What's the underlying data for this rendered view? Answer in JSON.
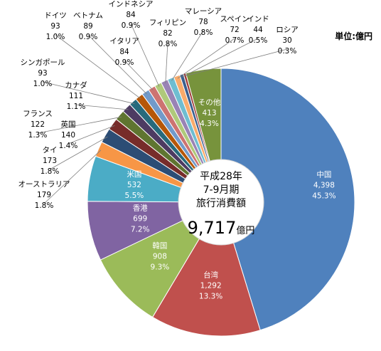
{
  "unit_label": "単位:億円",
  "center": {
    "line1": "平成28年",
    "line2": "7-9月期",
    "line3": "旅行消費額",
    "total": "9,717",
    "total_unit": "億円"
  },
  "chart_data": {
    "type": "pie",
    "donut": true,
    "unit": "億円",
    "total": 9717,
    "slices": [
      {
        "name": "中国",
        "value": 4398,
        "value_label": "4,398",
        "pct": "45.3%",
        "color": "#4F81BD"
      },
      {
        "name": "台湾",
        "value": 1292,
        "value_label": "1,292",
        "pct": "13.3%",
        "color": "#C0504D"
      },
      {
        "name": "韓国",
        "value": 908,
        "value_label": "908",
        "pct": "9.3%",
        "color": "#9BBB59"
      },
      {
        "name": "香港",
        "value": 699,
        "value_label": "699",
        "pct": "7.2%",
        "color": "#8064A2"
      },
      {
        "name": "米国",
        "value": 532,
        "value_label": "532",
        "pct": "5.5%",
        "color": "#4BACC6"
      },
      {
        "name": "オーストラリア",
        "value": 179,
        "value_label": "179",
        "pct": "1.8%",
        "color": "#F79646"
      },
      {
        "name": "タイ",
        "value": 173,
        "value_label": "173",
        "pct": "1.8%",
        "color": "#2C4D75"
      },
      {
        "name": "英国",
        "value": 140,
        "value_label": "140",
        "pct": "1.4%",
        "color": "#772C2A"
      },
      {
        "name": "フランス",
        "value": 122,
        "value_label": "122",
        "pct": "1.3%",
        "color": "#5F7530"
      },
      {
        "name": "カナダ",
        "value": 111,
        "value_label": "111",
        "pct": "1.1%",
        "color": "#4D3B62"
      },
      {
        "name": "シンガポール",
        "value": 93,
        "value_label": "93",
        "pct": "1.0%",
        "color": "#276A7C"
      },
      {
        "name": "ドイツ",
        "value": 93,
        "value_label": "93",
        "pct": "1.0%",
        "color": "#B65708"
      },
      {
        "name": "ベトナム",
        "value": 89,
        "value_label": "89",
        "pct": "0.9%",
        "color": "#729ACA"
      },
      {
        "name": "イタリア",
        "value": 84,
        "value_label": "84",
        "pct": "0.9%",
        "color": "#CD7371"
      },
      {
        "name": "インドネシア",
        "value": 84,
        "value_label": "84",
        "pct": "0.9%",
        "color": "#AFC97A"
      },
      {
        "name": "フィリピン",
        "value": 82,
        "value_label": "82",
        "pct": "0.8%",
        "color": "#9983B5"
      },
      {
        "name": "マレーシア",
        "value": 78,
        "value_label": "78",
        "pct": "0.8%",
        "color": "#6FBDD1"
      },
      {
        "name": "スペイン",
        "value": 72,
        "value_label": "72",
        "pct": "0.7%",
        "color": "#F9AB6B"
      },
      {
        "name": "インド",
        "value": 44,
        "value_label": "44",
        "pct": "0.5%",
        "color": "#3A5F8E"
      },
      {
        "name": "ロシア",
        "value": 30,
        "value_label": "30",
        "pct": "0.3%",
        "color": "#9E3A38"
      },
      {
        "name": "その他",
        "value": 413,
        "value_label": "413",
        "pct": "4.3%",
        "color": "#77933C"
      }
    ]
  }
}
